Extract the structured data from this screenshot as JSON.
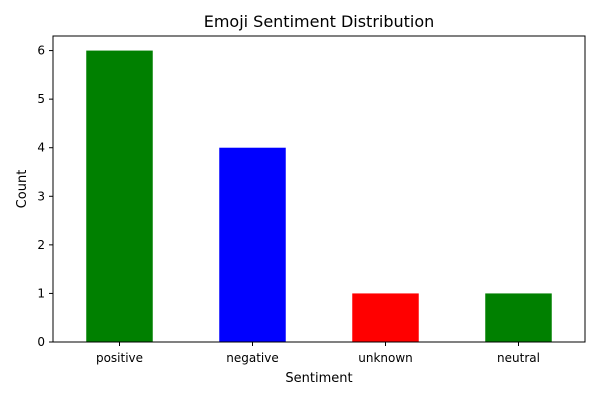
{
  "chart_data": {
    "type": "bar",
    "title": "Emoji Sentiment Distribution",
    "xlabel": "Sentiment",
    "ylabel": "Count",
    "categories": [
      "positive",
      "negative",
      "unknown",
      "neutral"
    ],
    "values": [
      6,
      4,
      1,
      1
    ],
    "colors": [
      "#008000",
      "#0000ff",
      "#ff0000",
      "#008000"
    ],
    "ylim": [
      0,
      6.3
    ],
    "yticks": [
      0,
      1,
      2,
      3,
      4,
      5,
      6
    ],
    "grid": false,
    "legend": "none"
  }
}
